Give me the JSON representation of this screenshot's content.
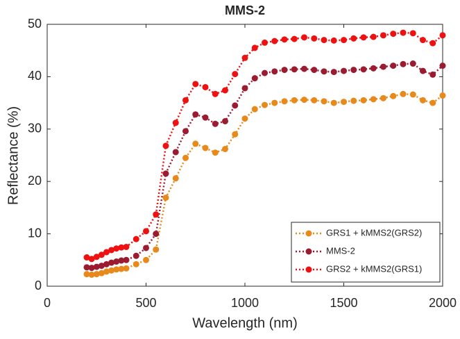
{
  "chart_data": {
    "type": "line",
    "title": "MMS-2",
    "xlabel": "Wavelength (nm)",
    "ylabel": "Reflectance (%)",
    "x": [
      200,
      225,
      250,
      275,
      300,
      325,
      350,
      375,
      400,
      450,
      500,
      550,
      600,
      650,
      700,
      750,
      800,
      850,
      900,
      950,
      1000,
      1050,
      1100,
      1150,
      1200,
      1250,
      1300,
      1350,
      1400,
      1450,
      1500,
      1550,
      1600,
      1650,
      1700,
      1750,
      1800,
      1850,
      1900,
      1950,
      2000
    ],
    "series": [
      {
        "name": "GRS1 + kMMS2(GRS2)",
        "color": "#e8891c",
        "values": [
          2.3,
          2.2,
          2.3,
          2.5,
          2.8,
          3.0,
          3.2,
          3.3,
          3.4,
          4.2,
          5.0,
          7.0,
          16.9,
          20.6,
          24.5,
          27.2,
          26.4,
          25.5,
          26.2,
          29.0,
          32.0,
          33.8,
          34.6,
          35.0,
          35.3,
          35.5,
          35.6,
          35.5,
          35.3,
          35.0,
          35.2,
          35.4,
          35.5,
          35.7,
          35.9,
          36.3,
          36.7,
          36.6,
          35.5,
          35.0,
          36.4
        ]
      },
      {
        "name": "MMS-2",
        "color": "#9b1b30",
        "values": [
          3.6,
          3.5,
          3.7,
          3.9,
          4.2,
          4.5,
          4.7,
          4.9,
          5.0,
          5.8,
          7.3,
          10.0,
          21.5,
          25.6,
          29.6,
          32.8,
          32.2,
          31.0,
          31.5,
          34.5,
          37.8,
          39.7,
          40.7,
          41.0,
          41.3,
          41.4,
          41.5,
          41.3,
          41.0,
          40.9,
          41.1,
          41.3,
          41.4,
          41.6,
          41.9,
          42.1,
          42.4,
          42.5,
          41.1,
          40.4,
          42.1
        ]
      },
      {
        "name": "GRS2 + kMMS2(GRS1)",
        "color": "#ee1111",
        "values": [
          5.5,
          5.2,
          5.6,
          6.0,
          6.5,
          6.9,
          7.2,
          7.4,
          7.5,
          9.0,
          10.5,
          13.7,
          26.8,
          31.2,
          35.5,
          38.6,
          38.0,
          36.7,
          37.4,
          40.5,
          43.6,
          45.5,
          46.5,
          46.8,
          47.1,
          47.2,
          47.5,
          47.3,
          47.0,
          46.9,
          47.0,
          47.3,
          47.5,
          47.6,
          47.9,
          48.2,
          48.4,
          48.3,
          47.0,
          46.4,
          47.9
        ]
      }
    ],
    "xlim": [
      0,
      2000
    ],
    "xticks": [
      0,
      500,
      1000,
      1500,
      2000
    ],
    "ylim": [
      0,
      50
    ],
    "yticks": [
      0,
      10,
      20,
      30,
      40,
      50
    ],
    "legend": "lower right"
  }
}
